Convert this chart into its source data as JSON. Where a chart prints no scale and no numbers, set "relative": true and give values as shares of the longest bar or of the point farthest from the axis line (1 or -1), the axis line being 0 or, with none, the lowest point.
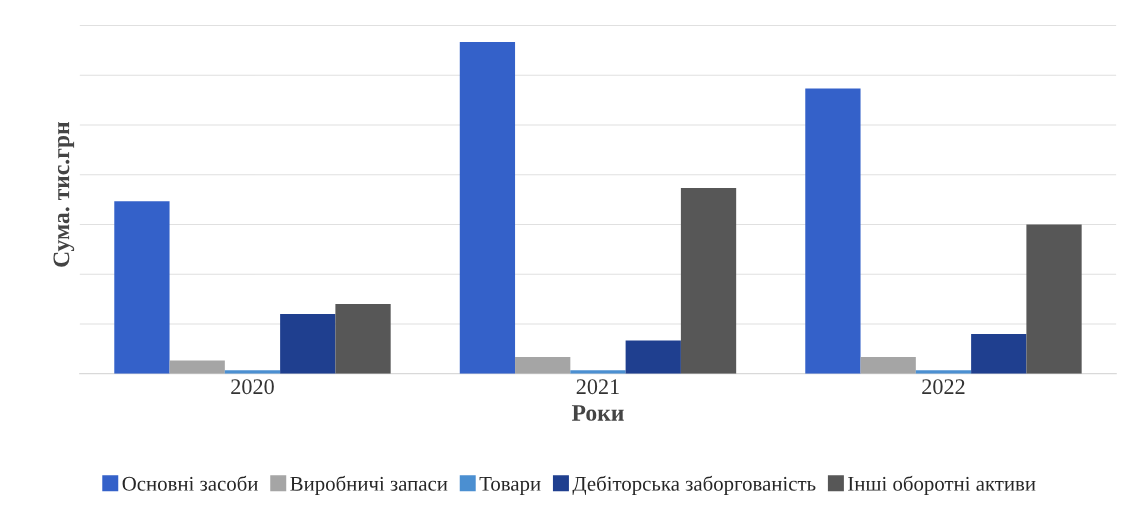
{
  "chart_data": {
    "type": "bar",
    "relative": true,
    "xlabel": "Роки",
    "ylabel": "Сума. тис.грн",
    "categories": [
      "2020",
      "2021",
      "2022"
    ],
    "series": [
      {
        "name": "Основні засоби",
        "color": "#3461c9",
        "values": [
          0.52,
          1.0,
          0.86
        ]
      },
      {
        "name": "Виробничі запаси",
        "color": "#a5a5a5",
        "values": [
          0.04,
          0.05,
          0.05
        ]
      },
      {
        "name": "Товари",
        "color": "#4b8fd1",
        "values": [
          0.01,
          0.01,
          0.01
        ]
      },
      {
        "name": "Дебіторська заборгованість",
        "color": "#1f3f8f",
        "values": [
          0.18,
          0.1,
          0.12
        ]
      },
      {
        "name": "Інші оборотні активи",
        "color": "#575757",
        "values": [
          0.21,
          0.56,
          0.45
        ]
      }
    ],
    "grid": "y",
    "legend": "bottom"
  }
}
